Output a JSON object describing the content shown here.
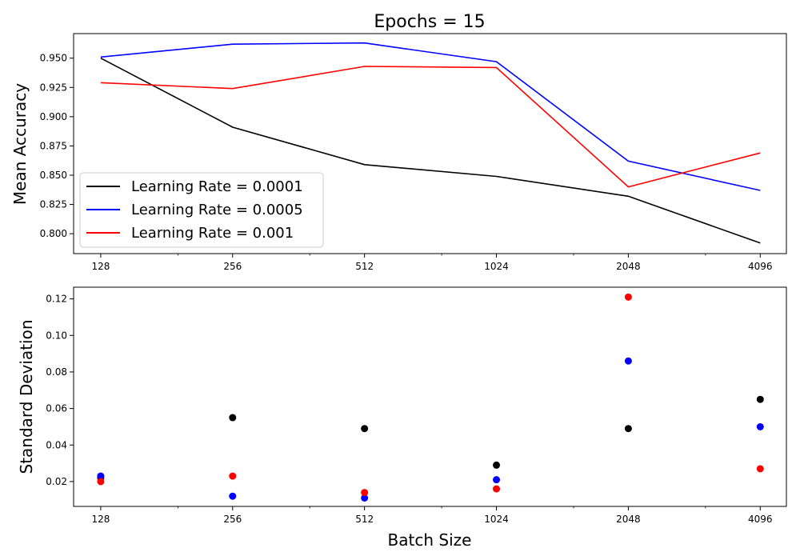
{
  "chart_data": [
    {
      "type": "line",
      "title": "Epochs = 15",
      "xlabel": "",
      "ylabel": "Mean Accuracy",
      "xscale": "log2",
      "x": [
        128,
        256,
        512,
        1024,
        2048,
        4096
      ],
      "xtick_labels": [
        "128",
        "256",
        "512",
        "1024",
        "2048",
        "4096"
      ],
      "xlim": [
        111,
        4700
      ],
      "ylim": [
        0.783,
        0.971
      ],
      "ytick_labels": [
        "0.800",
        "0.825",
        "0.850",
        "0.875",
        "0.900",
        "0.925",
        "0.950"
      ],
      "grid": false,
      "legend_position": "lower-left",
      "series": [
        {
          "name": "Learning Rate = 0.0001",
          "color": "#000000",
          "values": [
            0.95,
            0.891,
            0.859,
            0.849,
            0.832,
            0.792
          ]
        },
        {
          "name": "Learning Rate = 0.0005",
          "color": "#0000ff",
          "values": [
            0.951,
            0.962,
            0.963,
            0.947,
            0.862,
            0.837
          ]
        },
        {
          "name": "Learning Rate = 0.001",
          "color": "#ff0000",
          "values": [
            0.929,
            0.924,
            0.943,
            0.942,
            0.84,
            0.869
          ]
        }
      ]
    },
    {
      "type": "scatter",
      "title": "",
      "xlabel": "Batch Size",
      "ylabel": "Standard Deviation",
      "xscale": "log2",
      "x": [
        128,
        256,
        512,
        1024,
        2048,
        4096
      ],
      "xtick_labels": [
        "128",
        "256",
        "512",
        "1024",
        "2048",
        "4096"
      ],
      "xlim": [
        111,
        4700
      ],
      "ylim": [
        0.0064,
        0.1264
      ],
      "ytick_labels": [
        "0.02",
        "0.04",
        "0.06",
        "0.08",
        "0.10",
        "0.12"
      ],
      "grid": false,
      "series": [
        {
          "name": "Learning Rate = 0.0001",
          "color": "#000000",
          "values": [
            0.022,
            0.055,
            0.049,
            0.029,
            0.049,
            0.065
          ]
        },
        {
          "name": "Learning Rate = 0.0005",
          "color": "#0000ff",
          "values": [
            0.023,
            0.012,
            0.011,
            0.021,
            0.086,
            0.05
          ]
        },
        {
          "name": "Learning Rate = 0.001",
          "color": "#ff0000",
          "values": [
            0.02,
            0.023,
            0.014,
            0.016,
            0.121,
            0.027
          ]
        }
      ]
    }
  ]
}
